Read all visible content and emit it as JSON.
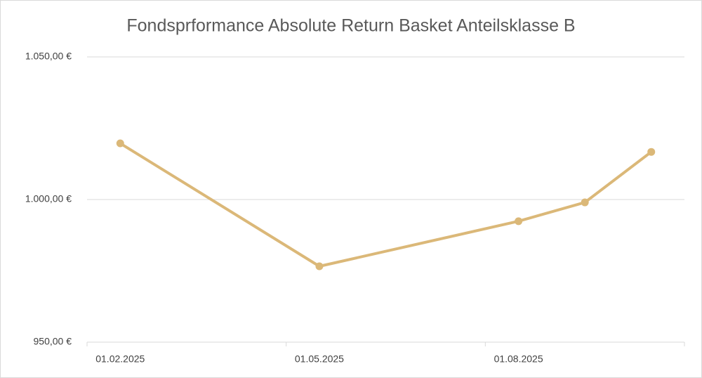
{
  "chart_data": {
    "type": "line",
    "title": "Fondsprformance Absolute Return Basket Anteilsklasse B",
    "categories": [
      "01.02.2025",
      null,
      null,
      "01.05.2025",
      null,
      null,
      "01.08.2025",
      null,
      null
    ],
    "values": [
      1019.7,
      null,
      null,
      976.6,
      null,
      null,
      992.4,
      999.0,
      1016.7
    ],
    "color": "#dbb878",
    "ylim": [
      950,
      1050
    ],
    "yticks": [
      {
        "value": 950,
        "label": "950,00 €"
      },
      {
        "value": 1000,
        "label": "1.000,00 €"
      },
      {
        "value": 1050,
        "label": "1.050,00 €"
      }
    ],
    "grid": true
  }
}
